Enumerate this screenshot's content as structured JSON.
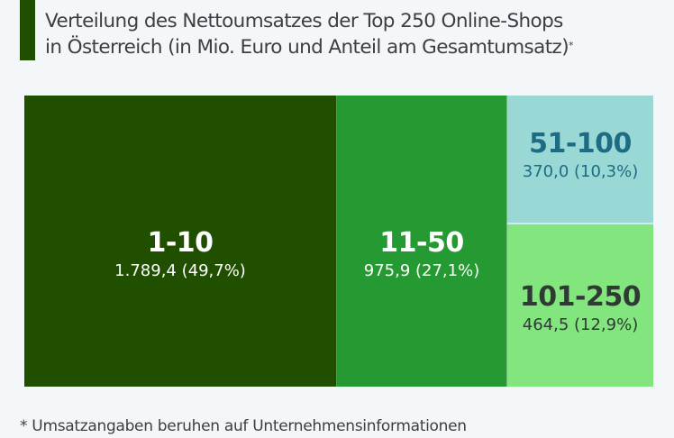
{
  "header": {
    "title_line1": "Verteilung des Nettoumsatzes der Top 250 Online-Shops",
    "title_line2": "in Österreich (in Mio. Euro und Anteil am Gesamtumsatz)",
    "title_asterisk": "*",
    "accent_color": "#214f00"
  },
  "footnote": "* Umsatzangaben beruhen auf Unternehmensinformationen",
  "chart_data": {
    "type": "treemap",
    "title": "Verteilung des Nettoumsatzes der Top 250 Online-Shops in Österreich (in Mio. Euro und Anteil am Gesamtumsatz)*",
    "unit": "Mio. Euro",
    "items": [
      {
        "label": "1-10",
        "value": 1789.4,
        "share": 49.7,
        "value_text": "1.789,4 (49,7%)",
        "color": "#214f00",
        "text_color": "#ffffff"
      },
      {
        "label": "11-50",
        "value": 975.9,
        "share": 27.1,
        "value_text": "975,9 (27,1%)",
        "color": "#259a32",
        "text_color": "#ffffff"
      },
      {
        "label": "51-100",
        "value": 370.0,
        "share": 10.3,
        "value_text": "370,0 (10,3%)",
        "color": "#9ad8d6",
        "text_color": "#1c6c84"
      },
      {
        "label": "101-250",
        "value": 464.5,
        "share": 12.9,
        "value_text": "464,5 (12,9%)",
        "color": "#82e57e",
        "text_color": "#2f3a35"
      }
    ]
  }
}
